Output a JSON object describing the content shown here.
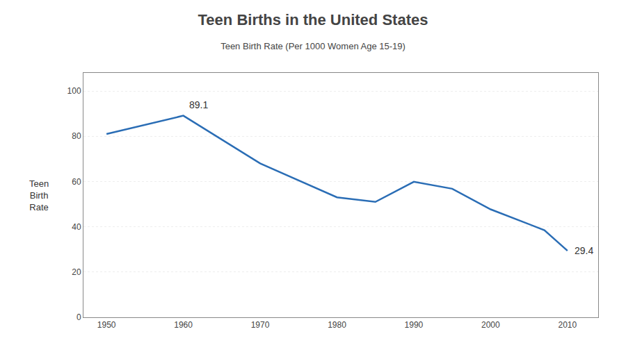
{
  "chart_data": {
    "type": "line",
    "title": "Teen Births in the United States",
    "subtitle": "Teen Birth Rate (Per 1000 Women Age 15-19)",
    "ylabel": "Teen\nBirth\nRate",
    "x": [
      1950,
      1960,
      1970,
      1980,
      1985,
      1990,
      1995,
      2000,
      2007,
      2010
    ],
    "values": [
      81.0,
      89.1,
      68.0,
      53.0,
      51.0,
      59.9,
      56.8,
      47.7,
      38.5,
      29.4
    ],
    "color": "#2a6db5",
    "xlim": [
      1947,
      2014
    ],
    "xticks": [
      1950,
      1960,
      1970,
      1980,
      1990,
      2000,
      2010
    ],
    "ylim": [
      0,
      108
    ],
    "yticks": [
      0,
      20,
      40,
      60,
      80,
      100
    ],
    "grid": true,
    "annotations": [
      {
        "x": 1960,
        "y": 89.1,
        "label": "89.1"
      },
      {
        "x": 2010,
        "y": 29.4,
        "label": "29.4"
      }
    ]
  }
}
